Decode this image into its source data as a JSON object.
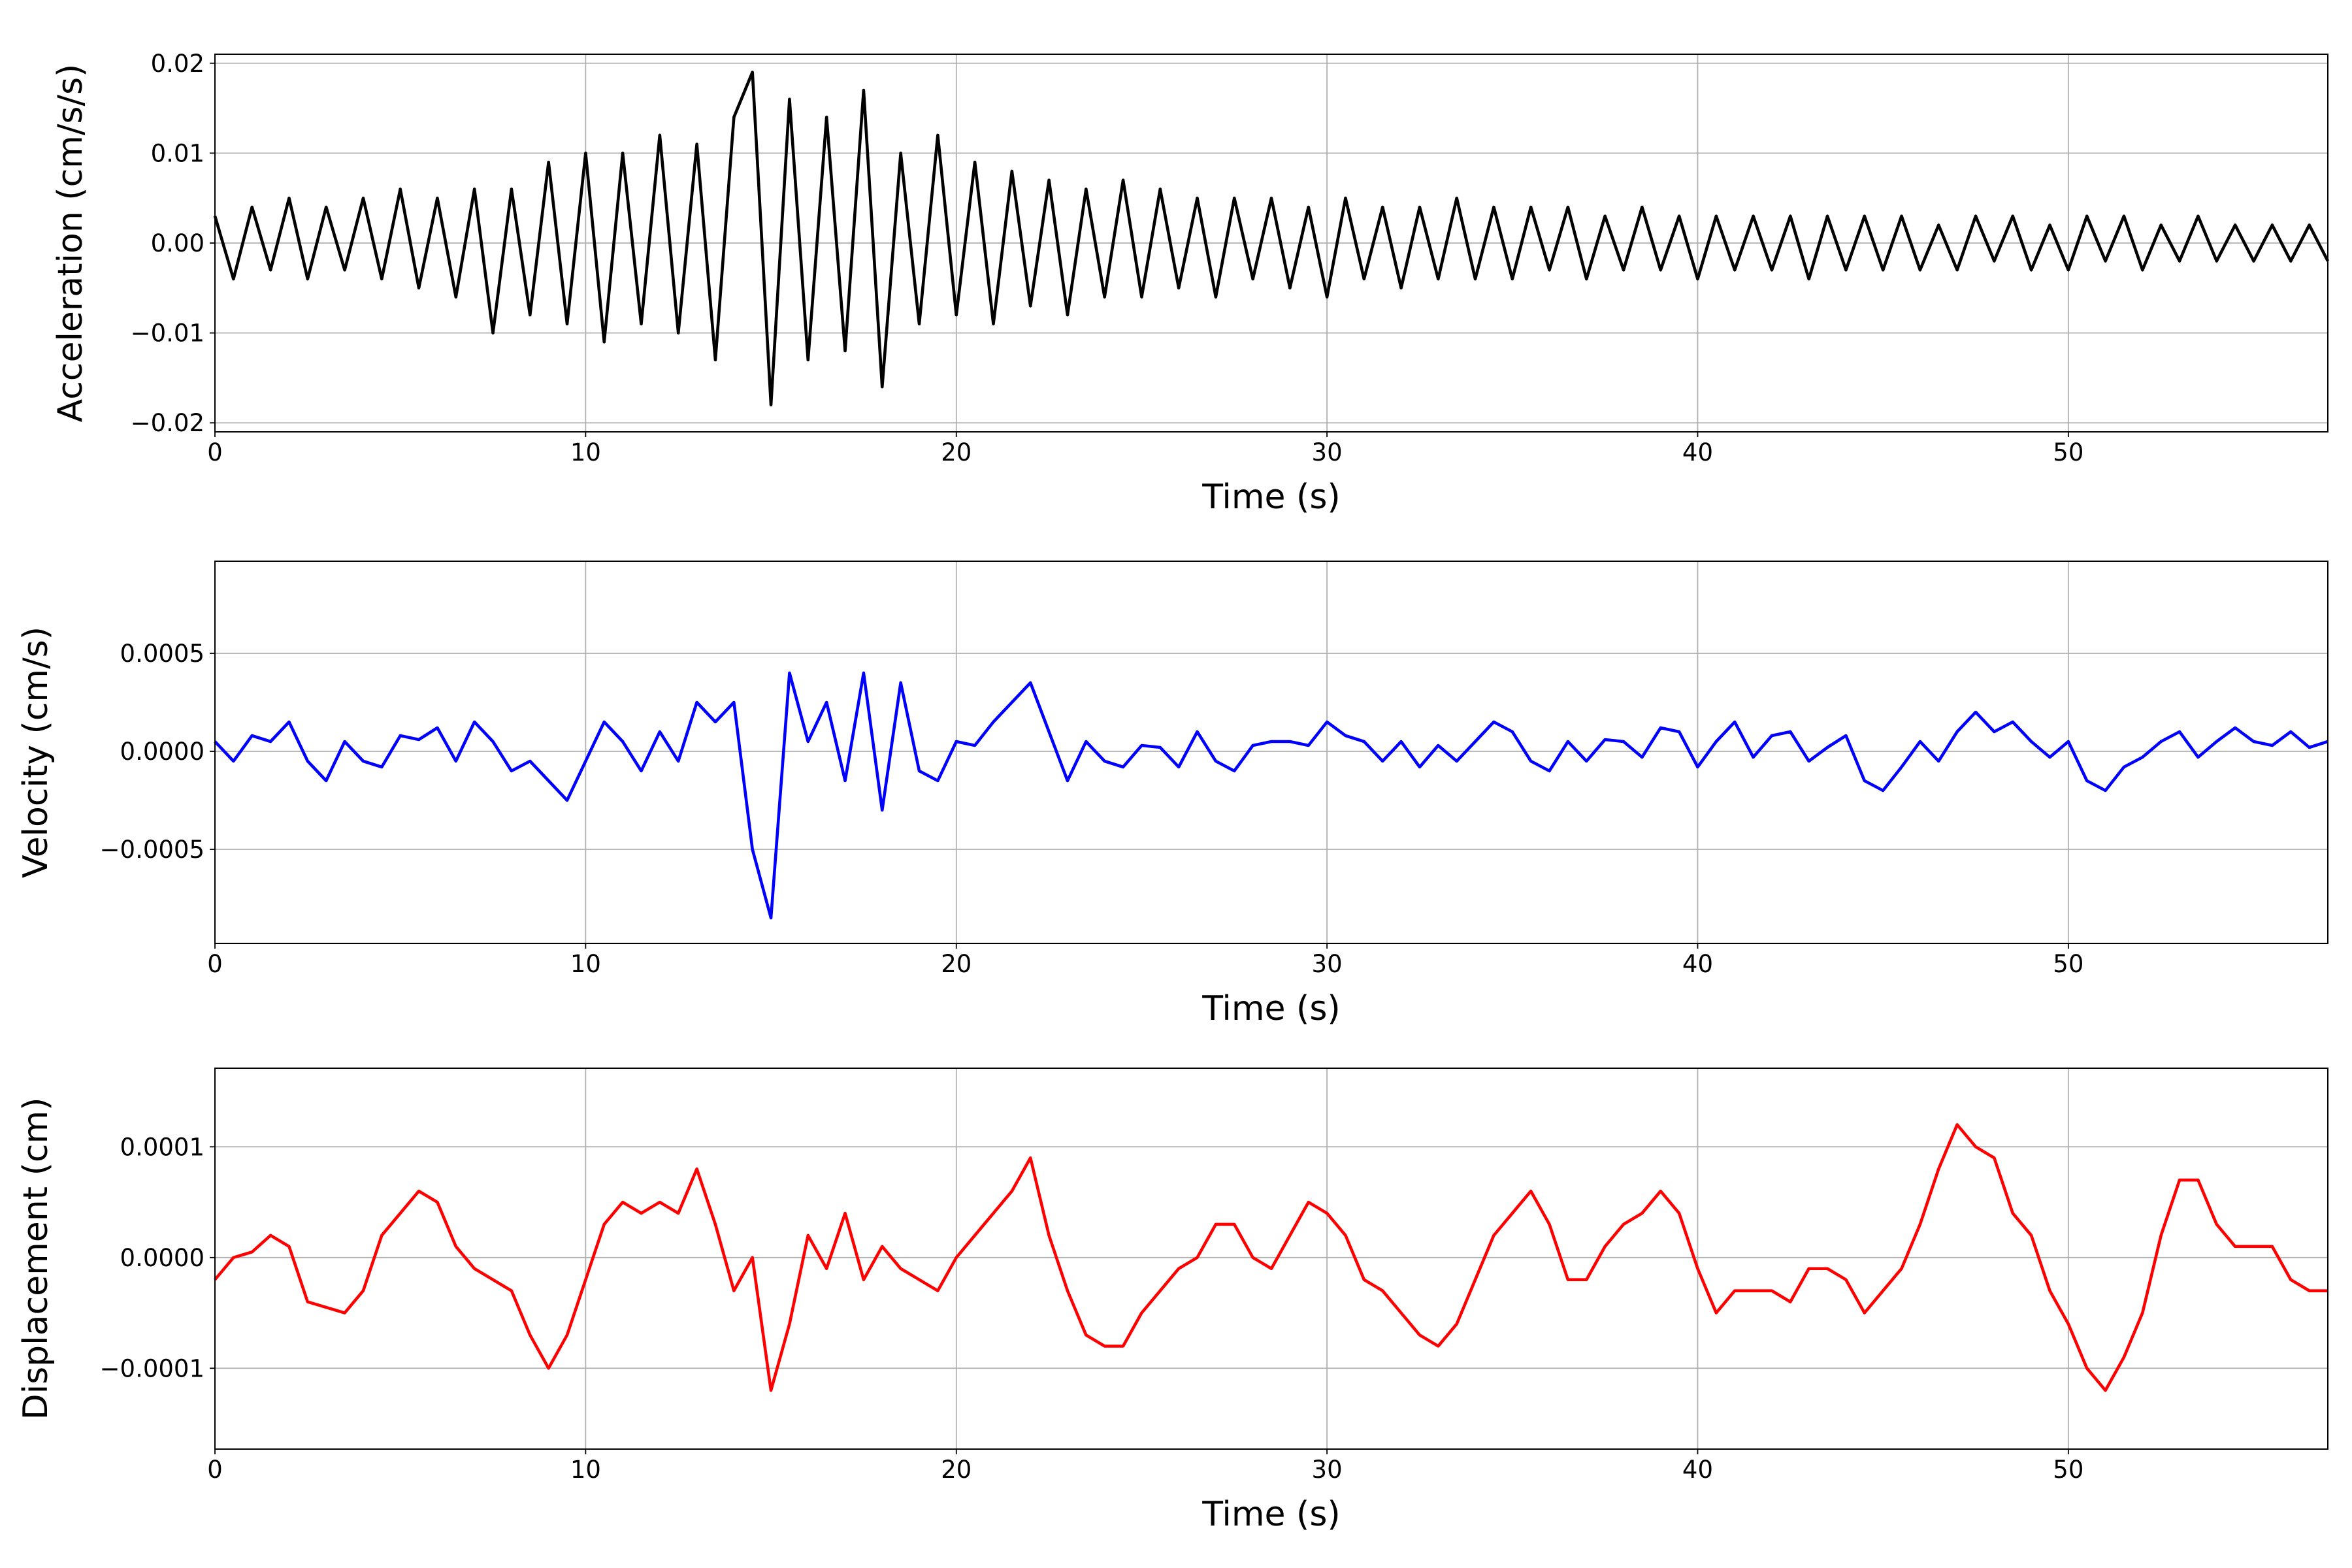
{
  "chart_data": [
    {
      "type": "line",
      "ylabel": "Acceleration (cm/s/s)",
      "xlabel": "Time (s)",
      "color": "#000000",
      "grid": true,
      "xlim": [
        0,
        57
      ],
      "xticks": [
        0,
        10,
        20,
        30,
        40,
        50
      ],
      "ylim": [
        -0.021,
        0.021
      ],
      "yticks": [
        {
          "value": -0.02,
          "label": "−0.02"
        },
        {
          "value": -0.01,
          "label": "−0.01"
        },
        {
          "value": 0,
          "label": "0.00"
        },
        {
          "value": 0.01,
          "label": "0.01"
        },
        {
          "value": 0.02,
          "label": "0.02"
        }
      ],
      "x": [
        0,
        0.5,
        1,
        1.5,
        2,
        2.5,
        3,
        3.5,
        4,
        4.5,
        5,
        5.5,
        6,
        6.5,
        7,
        7.5,
        8,
        8.5,
        9,
        9.5,
        10,
        10.5,
        11,
        11.5,
        12,
        12.5,
        13,
        13.5,
        14,
        14.5,
        15,
        15.5,
        16,
        16.5,
        17,
        17.5,
        18,
        18.5,
        19,
        19.5,
        20,
        20.5,
        21,
        21.5,
        22,
        22.5,
        23,
        23.5,
        24,
        24.5,
        25,
        25.5,
        26,
        26.5,
        27,
        27.5,
        28,
        28.5,
        29,
        29.5,
        30,
        30.5,
        31,
        31.5,
        32,
        32.5,
        33,
        33.5,
        34,
        34.5,
        35,
        35.5,
        36,
        36.5,
        37,
        37.5,
        38,
        38.5,
        39,
        39.5,
        40,
        40.5,
        41,
        41.5,
        42,
        42.5,
        43,
        43.5,
        44,
        44.5,
        45,
        45.5,
        46,
        46.5,
        47,
        47.5,
        48,
        48.5,
        49,
        49.5,
        50,
        50.5,
        51,
        51.5,
        52,
        52.5,
        53,
        53.5,
        54,
        54.5,
        55,
        55.5,
        56,
        56.5,
        57
      ],
      "values": [
        0.003,
        -0.004,
        0.004,
        -0.003,
        0.005,
        -0.004,
        0.004,
        -0.003,
        0.005,
        -0.004,
        0.006,
        -0.005,
        0.005,
        -0.006,
        0.006,
        -0.01,
        0.006,
        -0.008,
        0.009,
        -0.009,
        0.01,
        -0.011,
        0.01,
        -0.009,
        0.012,
        -0.01,
        0.011,
        -0.013,
        0.014,
        0.019,
        -0.018,
        0.016,
        -0.013,
        0.014,
        -0.012,
        0.017,
        -0.016,
        0.01,
        -0.009,
        0.012,
        -0.008,
        0.009,
        -0.009,
        0.008,
        -0.007,
        0.007,
        -0.008,
        0.006,
        -0.006,
        0.007,
        -0.006,
        0.006,
        -0.005,
        0.005,
        -0.006,
        0.005,
        -0.004,
        0.005,
        -0.005,
        0.004,
        -0.006,
        0.005,
        -0.004,
        0.004,
        -0.005,
        0.004,
        -0.004,
        0.005,
        -0.004,
        0.004,
        -0.004,
        0.004,
        -0.003,
        0.004,
        -0.004,
        0.003,
        -0.003,
        0.004,
        -0.003,
        0.003,
        -0.004,
        0.003,
        -0.003,
        0.003,
        -0.003,
        0.003,
        -0.004,
        0.003,
        -0.003,
        0.003,
        -0.003,
        0.003,
        -0.003,
        0.002,
        -0.003,
        0.003,
        -0.002,
        0.003,
        -0.003,
        0.002,
        -0.003,
        0.003,
        -0.002,
        0.003,
        -0.003,
        0.002,
        -0.002,
        0.003,
        -0.002,
        0.002,
        -0.002,
        0.002,
        -0.002,
        0.002,
        -0.002
      ]
    },
    {
      "type": "line",
      "ylabel": "Velocity (cm/s)",
      "xlabel": "Time (s)",
      "color": "#0000ff",
      "grid": true,
      "xlim": [
        0,
        57
      ],
      "xticks": [
        0,
        10,
        20,
        30,
        40,
        50
      ],
      "ylim": [
        -0.00098,
        0.00097
      ],
      "yticks": [
        {
          "value": -0.0005,
          "label": "−0.0005"
        },
        {
          "value": 0,
          "label": "0.0000"
        },
        {
          "value": 0.0005,
          "label": "0.0005"
        }
      ],
      "x": [
        0,
        0.5,
        1,
        1.5,
        2,
        2.5,
        3,
        3.5,
        4,
        4.5,
        5,
        5.5,
        6,
        6.5,
        7,
        7.5,
        8,
        8.5,
        9,
        9.5,
        10,
        10.5,
        11,
        11.5,
        12,
        12.5,
        13,
        13.5,
        14,
        14.5,
        15,
        15.5,
        16,
        16.5,
        17,
        17.5,
        18,
        18.5,
        19,
        19.5,
        20,
        20.5,
        21,
        21.5,
        22,
        22.5,
        23,
        23.5,
        24,
        24.5,
        25,
        25.5,
        26,
        26.5,
        27,
        27.5,
        28,
        28.5,
        29,
        29.5,
        30,
        30.5,
        31,
        31.5,
        32,
        32.5,
        33,
        33.5,
        34,
        34.5,
        35,
        35.5,
        36,
        36.5,
        37,
        37.5,
        38,
        38.5,
        39,
        39.5,
        40,
        40.5,
        41,
        41.5,
        42,
        42.5,
        43,
        43.5,
        44,
        44.5,
        45,
        45.5,
        46,
        46.5,
        47,
        47.5,
        48,
        48.5,
        49,
        49.5,
        50,
        50.5,
        51,
        51.5,
        52,
        52.5,
        53,
        53.5,
        54,
        54.5,
        55,
        55.5,
        56,
        56.5,
        57
      ],
      "values": [
        5e-05,
        -5e-05,
        8e-05,
        5e-05,
        0.00015,
        -5e-05,
        -0.00015,
        5e-05,
        -5e-05,
        -8e-05,
        8e-05,
        6e-05,
        0.00012,
        -5e-05,
        0.00015,
        5e-05,
        -0.0001,
        -5e-05,
        -0.00015,
        -0.00025,
        -5e-05,
        0.00015,
        5e-05,
        -0.0001,
        0.0001,
        -5e-05,
        0.00025,
        0.00015,
        0.00025,
        -0.0005,
        -0.00085,
        0.0004,
        5e-05,
        0.00025,
        -0.00015,
        0.0004,
        -0.0003,
        0.00035,
        -0.0001,
        -0.00015,
        5e-05,
        3e-05,
        0.00015,
        0.00025,
        0.00035,
        0.0001,
        -0.00015,
        5e-05,
        -5e-05,
        -8e-05,
        3e-05,
        2e-05,
        -8e-05,
        0.0001,
        -5e-05,
        -0.0001,
        3e-05,
        5e-05,
        5e-05,
        3e-05,
        0.00015,
        8e-05,
        5e-05,
        -5e-05,
        5e-05,
        -8e-05,
        3e-05,
        -5e-05,
        5e-05,
        0.00015,
        0.0001,
        -5e-05,
        -0.0001,
        5e-05,
        -5e-05,
        6e-05,
        5e-05,
        -3e-05,
        0.00012,
        0.0001,
        -8e-05,
        5e-05,
        0.00015,
        -3e-05,
        8e-05,
        0.0001,
        -5e-05,
        2e-05,
        8e-05,
        -0.00015,
        -0.0002,
        -8e-05,
        5e-05,
        -5e-05,
        0.0001,
        0.0002,
        0.0001,
        0.00015,
        5e-05,
        -3e-05,
        5e-05,
        -0.00015,
        -0.0002,
        -8e-05,
        -3e-05,
        5e-05,
        0.0001,
        -3e-05,
        5e-05,
        0.00012,
        5e-05,
        3e-05,
        0.0001,
        2e-05,
        5e-05
      ]
    },
    {
      "type": "line",
      "ylabel": "Displacement (cm)",
      "xlabel": "Time (s)",
      "color": "#ff0000",
      "grid": true,
      "xlim": [
        0,
        57
      ],
      "xticks": [
        0,
        10,
        20,
        30,
        40,
        50
      ],
      "ylim": [
        -0.000173,
        0.000171
      ],
      "yticks": [
        {
          "value": -0.0001,
          "label": "−0.0001"
        },
        {
          "value": 0,
          "label": "0.0000"
        },
        {
          "value": 0.0001,
          "label": "0.0001"
        }
      ],
      "x": [
        0,
        0.5,
        1,
        1.5,
        2,
        2.5,
        3,
        3.5,
        4,
        4.5,
        5,
        5.5,
        6,
        6.5,
        7,
        7.5,
        8,
        8.5,
        9,
        9.5,
        10,
        10.5,
        11,
        11.5,
        12,
        12.5,
        13,
        13.5,
        14,
        14.5,
        15,
        15.5,
        16,
        16.5,
        17,
        17.5,
        18,
        18.5,
        19,
        19.5,
        20,
        20.5,
        21,
        21.5,
        22,
        22.5,
        23,
        23.5,
        24,
        24.5,
        25,
        25.5,
        26,
        26.5,
        27,
        27.5,
        28,
        28.5,
        29,
        29.5,
        30,
        30.5,
        31,
        31.5,
        32,
        32.5,
        33,
        33.5,
        34,
        34.5,
        35,
        35.5,
        36,
        36.5,
        37,
        37.5,
        38,
        38.5,
        39,
        39.5,
        40,
        40.5,
        41,
        41.5,
        42,
        42.5,
        43,
        43.5,
        44,
        44.5,
        45,
        45.5,
        46,
        46.5,
        47,
        47.5,
        48,
        48.5,
        49,
        49.5,
        50,
        50.5,
        51,
        51.5,
        52,
        52.5,
        53,
        53.5,
        54,
        54.5,
        55,
        55.5,
        56,
        56.5,
        57
      ],
      "values": [
        -2e-05,
        0,
        5e-06,
        2e-05,
        1e-05,
        -4e-05,
        -4.5e-05,
        -5e-05,
        -3e-05,
        2e-05,
        4e-05,
        6e-05,
        5e-05,
        1e-05,
        -1e-05,
        -2e-05,
        -3e-05,
        -7e-05,
        -0.0001,
        -7e-05,
        -2e-05,
        3e-05,
        5e-05,
        4e-05,
        5e-05,
        4e-05,
        8e-05,
        3e-05,
        -3e-05,
        0,
        -0.00012,
        -6e-05,
        2e-05,
        -1e-05,
        4e-05,
        -2e-05,
        1e-05,
        -1e-05,
        -2e-05,
        -3e-05,
        0,
        2e-05,
        4e-05,
        6e-05,
        9e-05,
        2e-05,
        -3e-05,
        -7e-05,
        -8e-05,
        -8e-05,
        -5e-05,
        -3e-05,
        -1e-05,
        0,
        3e-05,
        3e-05,
        0,
        -1e-05,
        2e-05,
        5e-05,
        4e-05,
        2e-05,
        -2e-05,
        -3e-05,
        -5e-05,
        -7e-05,
        -8e-05,
        -6e-05,
        -2e-05,
        2e-05,
        4e-05,
        6e-05,
        3e-05,
        -2e-05,
        -2e-05,
        1e-05,
        3e-05,
        4e-05,
        6e-05,
        4e-05,
        -1e-05,
        -5e-05,
        -3e-05,
        -3e-05,
        -3e-05,
        -4e-05,
        -1e-05,
        -1e-05,
        -2e-05,
        -5e-05,
        -3e-05,
        -1e-05,
        3e-05,
        8e-05,
        0.00012,
        0.0001,
        9e-05,
        4e-05,
        2e-05,
        -3e-05,
        -6e-05,
        -0.0001,
        -0.00012,
        -9e-05,
        -5e-05,
        2e-05,
        7e-05,
        7e-05,
        3e-05,
        1e-05,
        1e-05,
        1e-05,
        -2e-05,
        -3e-05,
        -3e-05
      ]
    }
  ]
}
